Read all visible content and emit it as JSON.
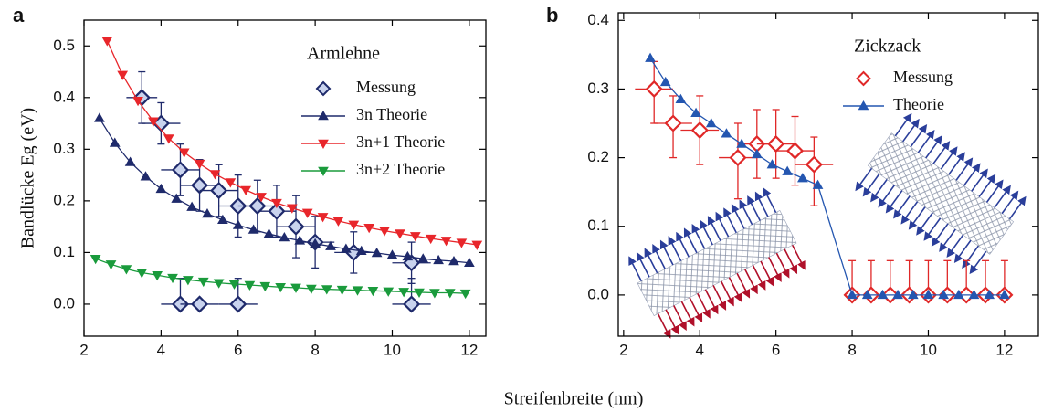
{
  "x_label": "Streifenbreite  (nm)",
  "chart_data": [
    {
      "type": "line",
      "panel_label": "a",
      "y_label": "Bandlücke Eg (eV)",
      "legend_title": "Armlehne",
      "legend_title_color": "#e07b20",
      "xlim": [
        2,
        12.43
      ],
      "ylim": [
        -0.062,
        0.55
      ],
      "xticks": [
        2,
        4,
        6,
        8,
        10,
        12
      ],
      "yticks": [
        {
          "value": 0,
          "label": "0.0"
        },
        0.1,
        0.2,
        0.3,
        0.4,
        0.5
      ],
      "series": [
        {
          "name": "Messung",
          "color": "#1f2a6b",
          "marker": "diamond",
          "marker_fill": "#c9d3ee",
          "line": false,
          "x": [
            3.5,
            4.0,
            4.5,
            4.5,
            5.0,
            5.0,
            5.5,
            6.0,
            6.0,
            6.5,
            7.0,
            7.5,
            8.0,
            9.0,
            10.5,
            10.5
          ],
          "values": [
            0.4,
            0.35,
            0.26,
            0,
            0.23,
            0,
            0.22,
            0.19,
            0,
            0.19,
            0.18,
            0.15,
            0.12,
            0.1,
            0.08,
            0
          ],
          "xerr": [
            0.4,
            0.5,
            0.5,
            0.5,
            0.5,
            0.5,
            0.5,
            0.5,
            0.5,
            0.5,
            0.5,
            0.5,
            0.5,
            0.5,
            0.5,
            0.5
          ],
          "yerr_minus": [
            0.05,
            0.04,
            0.05,
            0,
            0.05,
            0,
            0.05,
            0.06,
            0,
            0.05,
            0.05,
            0.06,
            0.05,
            0.04,
            0.04,
            0
          ],
          "yerr_plus": [
            0.05,
            0.04,
            0.05,
            0.05,
            0.05,
            0,
            0.05,
            0.06,
            0.05,
            0.05,
            0.05,
            0.06,
            0.05,
            0.04,
            0.04,
            0.05
          ]
        },
        {
          "name": "3n Theorie",
          "color": "#1f2a6b",
          "marker": "triangle-up",
          "marker_fill": "#1f2a6b",
          "line": true,
          "x": [
            2.4,
            2.8,
            3.2,
            3.6,
            4.0,
            4.4,
            4.8,
            5.2,
            5.6,
            6.0,
            6.4,
            6.8,
            7.2,
            7.6,
            8.0,
            8.4,
            8.8,
            9.2,
            9.6,
            10.0,
            10.4,
            10.8,
            11.2,
            11.6,
            12.0
          ],
          "values": [
            0.36,
            0.312,
            0.275,
            0.247,
            0.223,
            0.204,
            0.188,
            0.175,
            0.163,
            0.153,
            0.144,
            0.136,
            0.129,
            0.123,
            0.117,
            0.112,
            0.107,
            0.103,
            0.099,
            0.095,
            0.092,
            0.088,
            0.085,
            0.083,
            0.08
          ]
        },
        {
          "name": "3n+1 Theorie",
          "color": "#e8262b",
          "marker": "triangle-down",
          "marker_fill": "#e8262b",
          "line": true,
          "x": [
            2.6,
            3.0,
            3.4,
            3.8,
            4.2,
            4.6,
            5.0,
            5.4,
            5.8,
            6.2,
            6.6,
            7.0,
            7.4,
            7.8,
            8.2,
            8.6,
            9.0,
            9.4,
            9.8,
            10.2,
            10.6,
            11.0,
            11.4,
            11.8,
            12.2
          ],
          "values": [
            0.51,
            0.444,
            0.394,
            0.354,
            0.321,
            0.294,
            0.272,
            0.252,
            0.236,
            0.221,
            0.208,
            0.196,
            0.186,
            0.177,
            0.169,
            0.161,
            0.154,
            0.148,
            0.142,
            0.137,
            0.132,
            0.127,
            0.123,
            0.119,
            0.115
          ]
        },
        {
          "name": "3n+2 Theorie",
          "color": "#1a9b3c",
          "marker": "triangle-down",
          "marker_fill": "#1a9b3c",
          "line": true,
          "x": [
            2.3,
            2.7,
            3.1,
            3.5,
            3.9,
            4.3,
            4.7,
            5.1,
            5.5,
            5.9,
            6.3,
            6.7,
            7.1,
            7.5,
            7.9,
            8.3,
            8.7,
            9.1,
            9.5,
            9.9,
            10.3,
            10.7,
            11.1,
            11.5,
            11.9
          ],
          "values": [
            0.088,
            0.077,
            0.068,
            0.061,
            0.056,
            0.051,
            0.047,
            0.044,
            0.041,
            0.039,
            0.037,
            0.035,
            0.033,
            0.032,
            0.03,
            0.029,
            0.028,
            0.027,
            0.026,
            0.025,
            0.024,
            0.023,
            0.022,
            0.022,
            0.021
          ]
        }
      ]
    },
    {
      "type": "line",
      "panel_label": "b",
      "legend_title": "Zickzack",
      "legend_title_color": "#e07b20",
      "xlim": [
        1.86,
        12.89
      ],
      "ylim": [
        -0.06,
        0.411
      ],
      "xticks": [
        2,
        4,
        6,
        8,
        10,
        12
      ],
      "yticks": [
        {
          "value": 0,
          "label": "0.0"
        },
        0.1,
        0.2,
        0.3,
        0.4
      ],
      "series": [
        {
          "name": "Messung",
          "color": "#e02828",
          "marker": "diamond",
          "marker_fill": "#ffffff",
          "line": false,
          "x": [
            2.8,
            3.3,
            4.0,
            5.0,
            5.5,
            6.0,
            6.5,
            7.0,
            8.0,
            8.5,
            9.0,
            9.5,
            10.0,
            10.5,
            11.0,
            11.5,
            12.0
          ],
          "values": [
            0.3,
            0.25,
            0.24,
            0.2,
            0.22,
            0.22,
            0.21,
            0.19,
            0,
            0,
            0,
            0,
            0,
            0,
            0,
            0,
            0
          ],
          "xerr": [
            0.5,
            0.5,
            0.5,
            0.5,
            0.5,
            0.5,
            0.5,
            0.5,
            0,
            0,
            0,
            0,
            0,
            0,
            0,
            0,
            0
          ],
          "yerr_minus": [
            0.05,
            0.05,
            0.05,
            0.06,
            0.05,
            0.05,
            0.05,
            0.06,
            0,
            0,
            0,
            0,
            0,
            0,
            0,
            0,
            0
          ],
          "yerr_plus": [
            0.04,
            0.04,
            0.05,
            0.05,
            0.05,
            0.05,
            0.05,
            0.04,
            0.05,
            0.05,
            0.05,
            0.05,
            0.05,
            0.05,
            0.05,
            0.05,
            0.05
          ]
        },
        {
          "name": "Theorie",
          "color": "#2456b0",
          "marker": "triangle-up",
          "marker_fill": "#2456b0",
          "line": true,
          "x": [
            2.7,
            3.1,
            3.5,
            3.9,
            4.3,
            4.7,
            5.1,
            5.5,
            5.9,
            6.3,
            6.7,
            7.1,
            8.0,
            8.4,
            8.8,
            9.2,
            9.6,
            10.0,
            10.4,
            10.8,
            11.2,
            11.6,
            12.0
          ],
          "values": [
            0.345,
            0.31,
            0.285,
            0.265,
            0.25,
            0.235,
            0.22,
            0.205,
            0.19,
            0.18,
            0.17,
            0.16,
            0,
            0,
            0,
            0,
            0,
            0,
            0,
            0,
            0,
            0,
            0
          ]
        }
      ]
    }
  ]
}
